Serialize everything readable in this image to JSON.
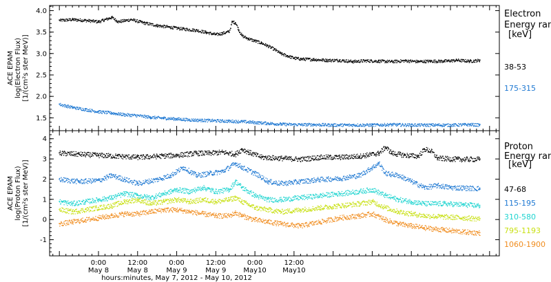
{
  "chart_data": [
    {
      "panel": "electron",
      "type": "scatter",
      "ylabel_lines": [
        "ACE EPAM",
        "log(Electron Flux)",
        "[1/(cm²s ster MeV)]"
      ],
      "ylim": [
        1.2,
        4.12
      ],
      "yticks": [
        "1.5",
        "2.0",
        "2.5",
        "3.0",
        "3.5",
        "4.0"
      ],
      "ytick_values": [
        1.5,
        2.0,
        2.5,
        3.0,
        3.5,
        4.0
      ],
      "legend_title_lines": [
        "Electron",
        "Energy ran"
      ],
      "legend_unit": "[keV]",
      "series": [
        {
          "name": "38-53",
          "color": "#000000",
          "points": [
            [
              -12,
              3.78
            ],
            [
              -8,
              3.8
            ],
            [
              -4,
              3.78
            ],
            [
              0,
              3.75
            ],
            [
              2,
              3.8
            ],
            [
              4,
              3.85
            ],
            [
              6,
              3.75
            ],
            [
              10,
              3.8
            ],
            [
              14,
              3.72
            ],
            [
              18,
              3.66
            ],
            [
              22,
              3.62
            ],
            [
              26,
              3.58
            ],
            [
              30,
              3.55
            ],
            [
              33,
              3.5
            ],
            [
              36,
              3.45
            ],
            [
              38,
              3.48
            ],
            [
              40,
              3.52
            ],
            [
              41,
              3.75
            ],
            [
              42,
              3.72
            ],
            [
              43,
              3.55
            ],
            [
              44,
              3.42
            ],
            [
              46,
              3.35
            ],
            [
              48,
              3.3
            ],
            [
              50,
              3.25
            ],
            [
              52,
              3.18
            ],
            [
              54,
              3.1
            ],
            [
              56,
              3.0
            ],
            [
              58,
              2.95
            ],
            [
              60,
              2.9
            ],
            [
              62,
              2.88
            ],
            [
              66,
              2.87
            ],
            [
              70,
              2.85
            ],
            [
              74,
              2.85
            ],
            [
              78,
              2.82
            ],
            [
              82,
              2.84
            ],
            [
              86,
              2.83
            ],
            [
              90,
              2.82
            ],
            [
              94,
              2.84
            ],
            [
              98,
              2.82
            ],
            [
              102,
              2.83
            ],
            [
              106,
              2.83
            ],
            [
              110,
              2.85
            ],
            [
              114,
              2.83
            ],
            [
              117,
              2.85
            ]
          ]
        },
        {
          "name": "175-315",
          "color": "#1e78d2",
          "points": [
            [
              -12,
              1.82
            ],
            [
              -8,
              1.75
            ],
            [
              -4,
              1.7
            ],
            [
              0,
              1.65
            ],
            [
              4,
              1.62
            ],
            [
              8,
              1.58
            ],
            [
              12,
              1.56
            ],
            [
              16,
              1.52
            ],
            [
              20,
              1.5
            ],
            [
              24,
              1.48
            ],
            [
              28,
              1.46
            ],
            [
              32,
              1.45
            ],
            [
              36,
              1.44
            ],
            [
              40,
              1.43
            ],
            [
              44,
              1.42
            ],
            [
              48,
              1.4
            ],
            [
              52,
              1.38
            ],
            [
              56,
              1.36
            ],
            [
              60,
              1.35
            ],
            [
              66,
              1.35
            ],
            [
              72,
              1.34
            ],
            [
              78,
              1.34
            ],
            [
              84,
              1.34
            ],
            [
              90,
              1.35
            ],
            [
              96,
              1.34
            ],
            [
              102,
              1.34
            ],
            [
              108,
              1.34
            ],
            [
              114,
              1.35
            ],
            [
              117,
              1.34
            ]
          ]
        }
      ]
    },
    {
      "panel": "proton",
      "type": "scatter",
      "ylabel_lines": [
        "ACE EPAM",
        "log(Proton Flux)",
        "[1/(cm²s ster MeV)]"
      ],
      "ylim": [
        -1.8,
        4.4
      ],
      "yticks": [
        "-1",
        "0",
        "1",
        "2",
        "3",
        "4"
      ],
      "ytick_values": [
        -1,
        0,
        1,
        2,
        3,
        4
      ],
      "legend_title_lines": [
        "Proton",
        "Energy ran"
      ],
      "legend_unit": "[keV]",
      "series": [
        {
          "name": "47-68",
          "color": "#000000",
          "points": [
            [
              -12,
              3.3
            ],
            [
              -6,
              3.25
            ],
            [
              0,
              3.2
            ],
            [
              6,
              3.15
            ],
            [
              12,
              3.1
            ],
            [
              18,
              3.15
            ],
            [
              24,
              3.2
            ],
            [
              30,
              3.3
            ],
            [
              34,
              3.3
            ],
            [
              38,
              3.35
            ],
            [
              42,
              3.25
            ],
            [
              44,
              3.5
            ],
            [
              46,
              3.35
            ],
            [
              50,
              3.1
            ],
            [
              56,
              3.05
            ],
            [
              62,
              3.0
            ],
            [
              68,
              3.1
            ],
            [
              74,
              3.1
            ],
            [
              80,
              3.15
            ],
            [
              86,
              3.3
            ],
            [
              88,
              3.6
            ],
            [
              90,
              3.3
            ],
            [
              94,
              3.2
            ],
            [
              98,
              3.15
            ],
            [
              100,
              3.5
            ],
            [
              102,
              3.4
            ],
            [
              104,
              3.05
            ],
            [
              110,
              3.0
            ],
            [
              117,
              3.0
            ]
          ]
        },
        {
          "name": "115-195",
          "color": "#1e78d2",
          "points": [
            [
              -12,
              2.0
            ],
            [
              -6,
              1.9
            ],
            [
              0,
              1.95
            ],
            [
              4,
              2.2
            ],
            [
              8,
              2.0
            ],
            [
              12,
              1.8
            ],
            [
              18,
              2.0
            ],
            [
              22,
              2.2
            ],
            [
              26,
              2.6
            ],
            [
              30,
              2.2
            ],
            [
              34,
              2.3
            ],
            [
              38,
              2.4
            ],
            [
              42,
              2.8
            ],
            [
              44,
              2.6
            ],
            [
              48,
              2.3
            ],
            [
              52,
              1.9
            ],
            [
              56,
              1.8
            ],
            [
              62,
              1.9
            ],
            [
              68,
              2.0
            ],
            [
              74,
              2.05
            ],
            [
              80,
              2.2
            ],
            [
              84,
              2.6
            ],
            [
              86,
              2.8
            ],
            [
              88,
              2.3
            ],
            [
              92,
              2.2
            ],
            [
              96,
              1.9
            ],
            [
              100,
              1.6
            ],
            [
              104,
              1.7
            ],
            [
              108,
              1.6
            ],
            [
              117,
              1.55
            ]
          ]
        },
        {
          "name": "310-580",
          "color": "#1fd4d0",
          "points": [
            [
              -12,
              0.9
            ],
            [
              -8,
              0.8
            ],
            [
              -4,
              0.9
            ],
            [
              0,
              1.0
            ],
            [
              4,
              1.1
            ],
            [
              8,
              1.3
            ],
            [
              12,
              1.2
            ],
            [
              16,
              1.1
            ],
            [
              20,
              1.3
            ],
            [
              24,
              1.5
            ],
            [
              28,
              1.4
            ],
            [
              32,
              1.6
            ],
            [
              36,
              1.4
            ],
            [
              40,
              1.5
            ],
            [
              42,
              1.9
            ],
            [
              44,
              1.6
            ],
            [
              48,
              1.2
            ],
            [
              52,
              1.0
            ],
            [
              56,
              1.0
            ],
            [
              62,
              1.1
            ],
            [
              68,
              1.2
            ],
            [
              74,
              1.3
            ],
            [
              80,
              1.4
            ],
            [
              84,
              1.5
            ],
            [
              88,
              1.2
            ],
            [
              92,
              1.0
            ],
            [
              96,
              0.9
            ],
            [
              100,
              0.8
            ],
            [
              106,
              0.8
            ],
            [
              112,
              0.75
            ],
            [
              117,
              0.7
            ]
          ]
        },
        {
          "name": "795-1193",
          "color": "#c8e014",
          "points": [
            [
              -12,
              0.5
            ],
            [
              -8,
              0.4
            ],
            [
              -4,
              0.5
            ],
            [
              0,
              0.6
            ],
            [
              4,
              0.7
            ],
            [
              8,
              0.9
            ],
            [
              12,
              1.0
            ],
            [
              16,
              0.8
            ],
            [
              20,
              0.9
            ],
            [
              24,
              1.0
            ],
            [
              28,
              0.9
            ],
            [
              32,
              1.0
            ],
            [
              36,
              0.9
            ],
            [
              40,
              1.0
            ],
            [
              42,
              1.1
            ],
            [
              44,
              0.9
            ],
            [
              48,
              0.6
            ],
            [
              52,
              0.5
            ],
            [
              56,
              0.4
            ],
            [
              62,
              0.5
            ],
            [
              68,
              0.6
            ],
            [
              74,
              0.7
            ],
            [
              80,
              0.8
            ],
            [
              84,
              0.9
            ],
            [
              88,
              0.6
            ],
            [
              92,
              0.4
            ],
            [
              96,
              0.3
            ],
            [
              100,
              0.2
            ],
            [
              106,
              0.15
            ],
            [
              112,
              0.1
            ],
            [
              117,
              0.05
            ]
          ]
        },
        {
          "name": "1060-1900",
          "color": "#f08c1e",
          "points": [
            [
              -12,
              -0.2
            ],
            [
              -8,
              -0.1
            ],
            [
              -4,
              0.0
            ],
            [
              0,
              0.1
            ],
            [
              4,
              0.2
            ],
            [
              8,
              0.3
            ],
            [
              12,
              0.3
            ],
            [
              16,
              0.4
            ],
            [
              20,
              0.5
            ],
            [
              24,
              0.5
            ],
            [
              28,
              0.4
            ],
            [
              32,
              0.3
            ],
            [
              36,
              0.2
            ],
            [
              40,
              0.2
            ],
            [
              42,
              0.35
            ],
            [
              44,
              0.2
            ],
            [
              48,
              0.0
            ],
            [
              52,
              -0.1
            ],
            [
              56,
              -0.2
            ],
            [
              62,
              -0.3
            ],
            [
              68,
              -0.1
            ],
            [
              74,
              0.1
            ],
            [
              80,
              0.2
            ],
            [
              84,
              0.3
            ],
            [
              88,
              0.0
            ],
            [
              92,
              -0.2
            ],
            [
              96,
              -0.3
            ],
            [
              100,
              -0.4
            ],
            [
              106,
              -0.5
            ],
            [
              112,
              -0.6
            ],
            [
              117,
              -0.65
            ]
          ]
        }
      ]
    }
  ],
  "x_axis": {
    "xlim": [
      -15,
      123
    ],
    "ticks": [
      {
        "x": 0,
        "time": "0:00",
        "date": "May 8"
      },
      {
        "x": 12,
        "time": "12:00",
        "date": "May 8"
      },
      {
        "x": 24,
        "time": "0:00",
        "date": "May 9"
      },
      {
        "x": 36,
        "time": "12:00",
        "date": "May 9"
      },
      {
        "x": 48,
        "time": "0:00",
        "date": "May10"
      },
      {
        "x": 60,
        "time": "12:00",
        "date": "May10"
      }
    ],
    "xlabel": "hours:minutes, May  7, 2012 - May 10, 2012"
  }
}
